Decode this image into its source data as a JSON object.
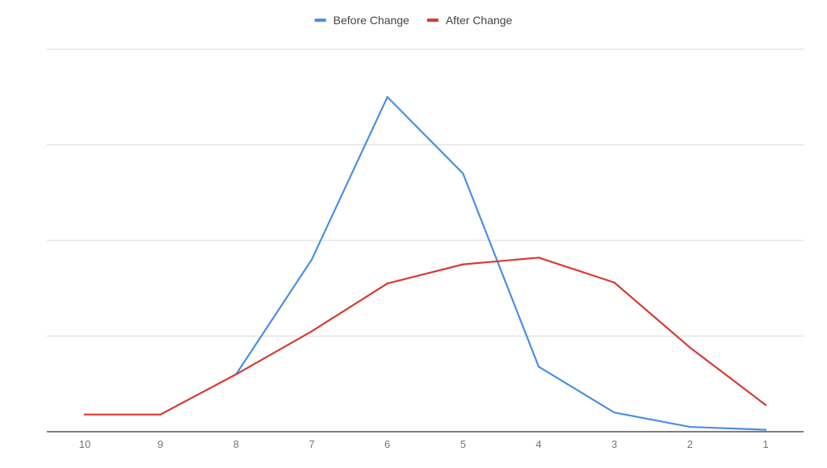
{
  "chart_data": {
    "type": "line",
    "categories": [
      "10",
      "9",
      "8",
      "7",
      "6",
      "5",
      "4",
      "3",
      "2",
      "1"
    ],
    "series": [
      {
        "name": "Before Change",
        "color": "#4a90e2",
        "values": [
          null,
          null,
          0.6,
          1.8,
          3.5,
          2.7,
          0.68,
          0.2,
          0.05,
          0.02
        ]
      },
      {
        "name": "After Change",
        "color": "#d93a32",
        "values": [
          0.18,
          0.18,
          0.6,
          1.05,
          1.55,
          1.75,
          1.82,
          1.56,
          0.88,
          0.28
        ]
      }
    ],
    "ylim": [
      0,
      4
    ],
    "grid": true,
    "legend": "top-center",
    "title": "",
    "xlabel": "",
    "ylabel": ""
  }
}
